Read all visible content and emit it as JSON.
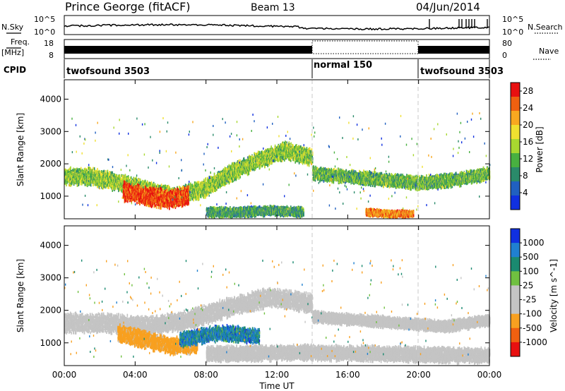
{
  "header": {
    "title": "Prince George (fitACF)",
    "beam": "Beam 13",
    "date": "04/Jun/2014"
  },
  "labels": {
    "nsky": "N.Sky",
    "nsearch": "N.Search",
    "freq": "Freq.",
    "mhz": "[MHz]",
    "nave": "Nave",
    "cpid": "CPID"
  },
  "noise_panel": {
    "left_ticks": [
      "10^5",
      "10^0"
    ],
    "right_ticks": [
      "10^5",
      "10^0"
    ]
  },
  "freq_panel": {
    "left_ticks": [
      "18",
      "8"
    ],
    "right_ticks": [
      "80",
      "0"
    ]
  },
  "cpid_segments": [
    {
      "name": "twofsound 3503",
      "start": 0,
      "end": 14
    },
    {
      "name": "normal 150",
      "start": 14,
      "end": 20
    },
    {
      "name": "twofsound 3503",
      "start": 20,
      "end": 24
    }
  ],
  "colors": {
    "power_scale": [
      "#1030e0",
      "#2060c0",
      "#2a8a6a",
      "#48b040",
      "#a8d830",
      "#f0e030",
      "#f8a820",
      "#f06010",
      "#e81010"
    ],
    "velocity_scale": [
      "#1030e0",
      "#2080d0",
      "#1a8a70",
      "#70c040",
      "#c4c4c4",
      "#c4c4c4",
      "#f8a020",
      "#f06010",
      "#e81010"
    ],
    "ground_scatter": "#c4c4c4"
  },
  "chart_data": [
    {
      "type": "heatmap",
      "title": "Power",
      "xlabel": "Time UT",
      "ylabel": "Slant Range [km]",
      "xlim": [
        0,
        24
      ],
      "ylim": [
        300,
        4600
      ],
      "x_ticks": [
        "00:00",
        "04:00",
        "08:00",
        "12:00",
        "16:00",
        "20:00",
        "00:00"
      ],
      "y_ticks": [
        1000,
        2000,
        3000,
        4000
      ],
      "colorbar": {
        "label": "Power [dB]",
        "ticks": [
          4,
          8,
          12,
          16,
          20,
          24,
          28
        ],
        "range": [
          0,
          30
        ]
      },
      "features": [
        {
          "t0": 0.0,
          "t1": 14.0,
          "r_center": [
            1600,
            1600,
            1400,
            1200,
            1000,
            1200,
            1700,
            2100,
            2400,
            2200
          ],
          "thickness": 450,
          "value": 14
        },
        {
          "t0": 3.3,
          "t1": 7.0,
          "r_center": [
            1150,
            1000,
            900,
            1000
          ],
          "thickness": 500,
          "value": 27
        },
        {
          "t0": 8.0,
          "t1": 13.5,
          "r_center": [
            500,
            500,
            550,
            500
          ],
          "thickness": 250,
          "value": 10
        },
        {
          "t0": 14.0,
          "t1": 24.0,
          "r_center": [
            1700,
            1600,
            1500,
            1400,
            1500,
            1700
          ],
          "thickness": 350,
          "value": 12
        },
        {
          "t0": 17.0,
          "t1": 19.7,
          "r_center": [
            500,
            450,
            450
          ],
          "thickness": 180,
          "value": 23
        }
      ]
    },
    {
      "type": "heatmap",
      "title": "Velocity",
      "xlabel": "Time UT",
      "ylabel": "Slant Range [km]",
      "xlim": [
        0,
        24
      ],
      "ylim": [
        300,
        4600
      ],
      "x_ticks": [
        "00:00",
        "04:00",
        "08:00",
        "12:00",
        "16:00",
        "20:00",
        "00:00"
      ],
      "y_ticks": [
        1000,
        2000,
        3000,
        4000
      ],
      "colorbar": {
        "label": "Velocity [m s^-1]",
        "ticks": [
          1000,
          500,
          100,
          25,
          -25,
          -100,
          -500,
          -1000
        ]
      },
      "features": [
        {
          "t0": 0.0,
          "t1": 14.0,
          "r_center": [
            1600,
            1600,
            1500,
            1700,
            2100,
            2400,
            2200
          ],
          "thickness": 500,
          "value": 0
        },
        {
          "t0": 3.0,
          "t1": 7.5,
          "r_center": [
            1300,
            1100,
            900,
            950
          ],
          "thickness": 450,
          "value": -250
        },
        {
          "t0": 6.5,
          "t1": 11.0,
          "r_center": [
            1100,
            1300,
            1200
          ],
          "thickness": 400,
          "value": 300
        },
        {
          "t0": 8.0,
          "t1": 24.0,
          "r_center": [
            650,
            700,
            650,
            600
          ],
          "thickness": 400,
          "value": 0
        },
        {
          "t0": 14.0,
          "t1": 24.0,
          "r_center": [
            1800,
            1700,
            1600,
            1500,
            1700
          ],
          "thickness": 300,
          "value": 0
        }
      ]
    }
  ]
}
